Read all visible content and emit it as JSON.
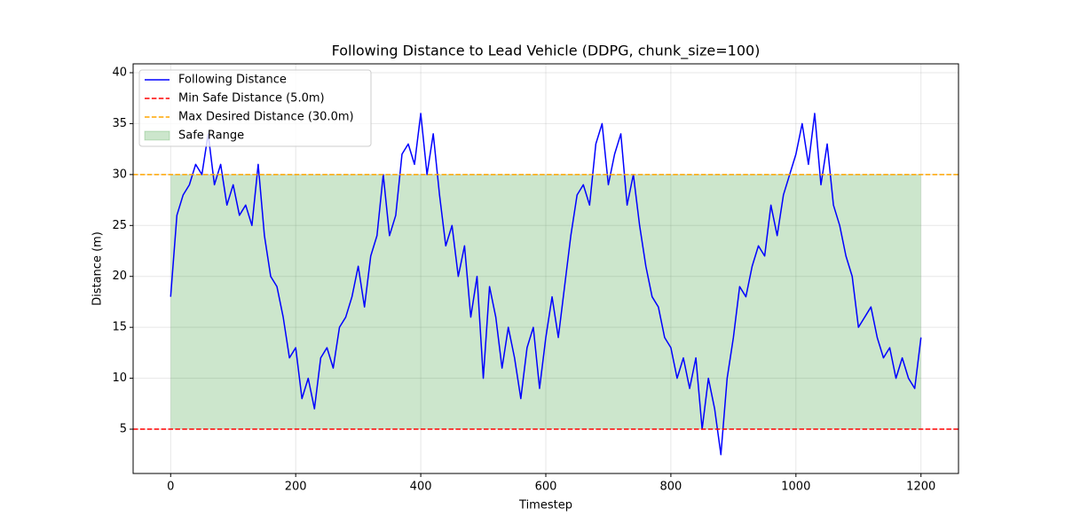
{
  "chart_data": {
    "type": "line",
    "title": "Following Distance to Lead Vehicle (DDPG, chunk_size=100)",
    "xlabel": "Timestep",
    "ylabel": "Distance (m)",
    "x": [
      0,
      10,
      20,
      30,
      40,
      50,
      60,
      70,
      80,
      90,
      100,
      110,
      120,
      130,
      140,
      150,
      160,
      170,
      180,
      190,
      200,
      210,
      220,
      230,
      240,
      250,
      260,
      270,
      280,
      290,
      300,
      310,
      320,
      330,
      340,
      350,
      360,
      370,
      380,
      390,
      400,
      410,
      420,
      430,
      440,
      450,
      460,
      470,
      480,
      490,
      500,
      510,
      520,
      530,
      540,
      550,
      560,
      570,
      580,
      590,
      600,
      610,
      620,
      630,
      640,
      650,
      660,
      670,
      680,
      690,
      700,
      710,
      720,
      730,
      740,
      750,
      760,
      770,
      780,
      790,
      800,
      810,
      820,
      830,
      840,
      850,
      860,
      870,
      880,
      890,
      900,
      910,
      920,
      930,
      940,
      950,
      960,
      970,
      980,
      990,
      1000,
      1010,
      1020,
      1030,
      1040,
      1050,
      1060,
      1070,
      1080,
      1090,
      1100,
      1110,
      1120,
      1130,
      1140,
      1150,
      1160,
      1170,
      1180,
      1190,
      1200
    ],
    "series": [
      {
        "name": "Following Distance",
        "color": "#0000ff",
        "values": [
          18,
          26,
          28,
          29,
          31,
          30,
          34,
          29,
          31,
          27,
          29,
          26,
          27,
          25,
          31,
          24,
          20,
          19,
          16,
          12,
          13,
          8,
          10,
          7,
          12,
          13,
          11,
          15,
          16,
          18,
          21,
          17,
          22,
          24,
          30,
          24,
          26,
          32,
          33,
          31,
          36,
          30,
          34,
          28,
          23,
          25,
          20,
          23,
          16,
          20,
          10,
          19,
          16,
          11,
          15,
          12,
          8,
          13,
          15,
          9,
          14,
          18,
          14,
          19,
          24,
          28,
          29,
          27,
          33,
          35,
          29,
          32,
          34,
          27,
          30,
          25,
          21,
          18,
          17,
          14,
          13,
          10,
          12,
          9,
          12,
          5,
          10,
          7,
          2.5,
          10,
          14,
          19,
          18,
          21,
          23,
          22,
          27,
          24,
          28,
          30,
          32,
          35,
          31,
          36,
          29,
          33,
          27,
          25,
          22,
          20,
          15,
          16,
          17,
          14,
          12,
          13,
          10,
          12,
          10,
          9,
          14
        ]
      }
    ],
    "hlines": [
      {
        "name": "Min Safe Distance (5.0m)",
        "value": 5,
        "color": "#ff0000"
      },
      {
        "name": "Max Desired Distance (30.0m)",
        "value": 30,
        "color": "#ffa500"
      }
    ],
    "fill": {
      "name": "Safe Range",
      "x": [
        0,
        1200
      ],
      "y": [
        5,
        30
      ],
      "color": "#008000"
    },
    "xlim": [
      -60,
      1260
    ],
    "ylim": [
      0.65,
      40.87
    ],
    "xticks": [
      0,
      200,
      400,
      600,
      800,
      1000,
      1200
    ],
    "yticks": [
      5,
      10,
      15,
      20,
      25,
      30,
      35,
      40
    ],
    "grid": true,
    "legend": "upper left"
  }
}
